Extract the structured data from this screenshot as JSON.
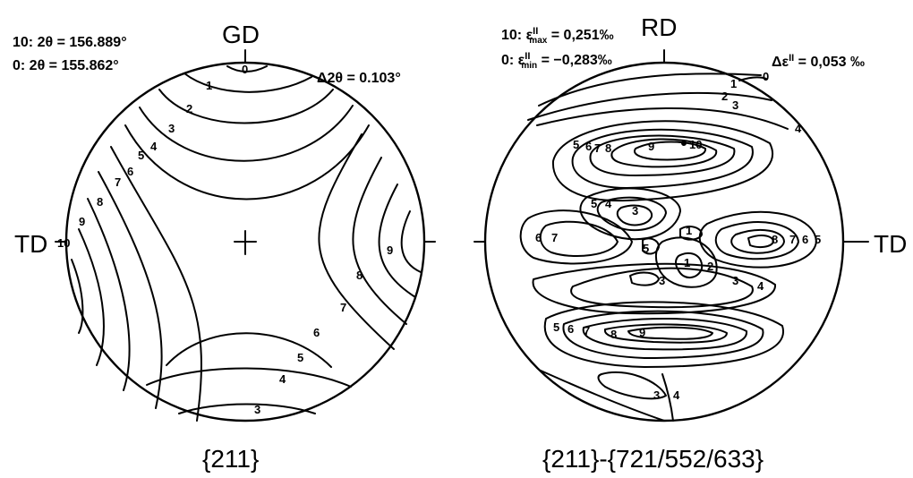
{
  "left_figure": {
    "header_max": "10:  2θ = 156.889°",
    "header_min": "0:  2θ = 155.862°",
    "header_delta": "Δ2θ = 0.103°",
    "axis_top": "GD",
    "axis_left": "TD",
    "caption": "{211}",
    "contour_labels": [
      "0",
      "1",
      "2",
      "3",
      "4",
      "5",
      "6",
      "7",
      "8",
      "9",
      "10",
      "9",
      "8",
      "7",
      "6",
      "5",
      "4",
      "3"
    ]
  },
  "right_figure": {
    "header_max": "10: ε",
    "header_max_sup": "II",
    "header_max_sub": "max",
    "header_max_val": " = 0,251‰",
    "header_min": "0: ε",
    "header_min_sup": "II",
    "header_min_sub": "min",
    "header_min_val": " = −0,283‰",
    "header_delta": "Δε",
    "header_delta_sup": "II",
    "header_delta_val": " = 0,053 ‰",
    "axis_top": "RD",
    "axis_right": "TD",
    "caption": "{211}-{721/552/633}",
    "contour_labels": [
      "0",
      "1",
      "2",
      "3",
      "4",
      "5",
      "6",
      "7",
      "8",
      "9",
      "10",
      "5",
      "4",
      "3",
      "6",
      "7",
      "5",
      "8",
      "7",
      "6",
      "5",
      "1",
      "2",
      "3",
      "4",
      "3",
      "1",
      "5",
      "6",
      "7",
      "8",
      "9",
      "3",
      "4"
    ]
  }
}
